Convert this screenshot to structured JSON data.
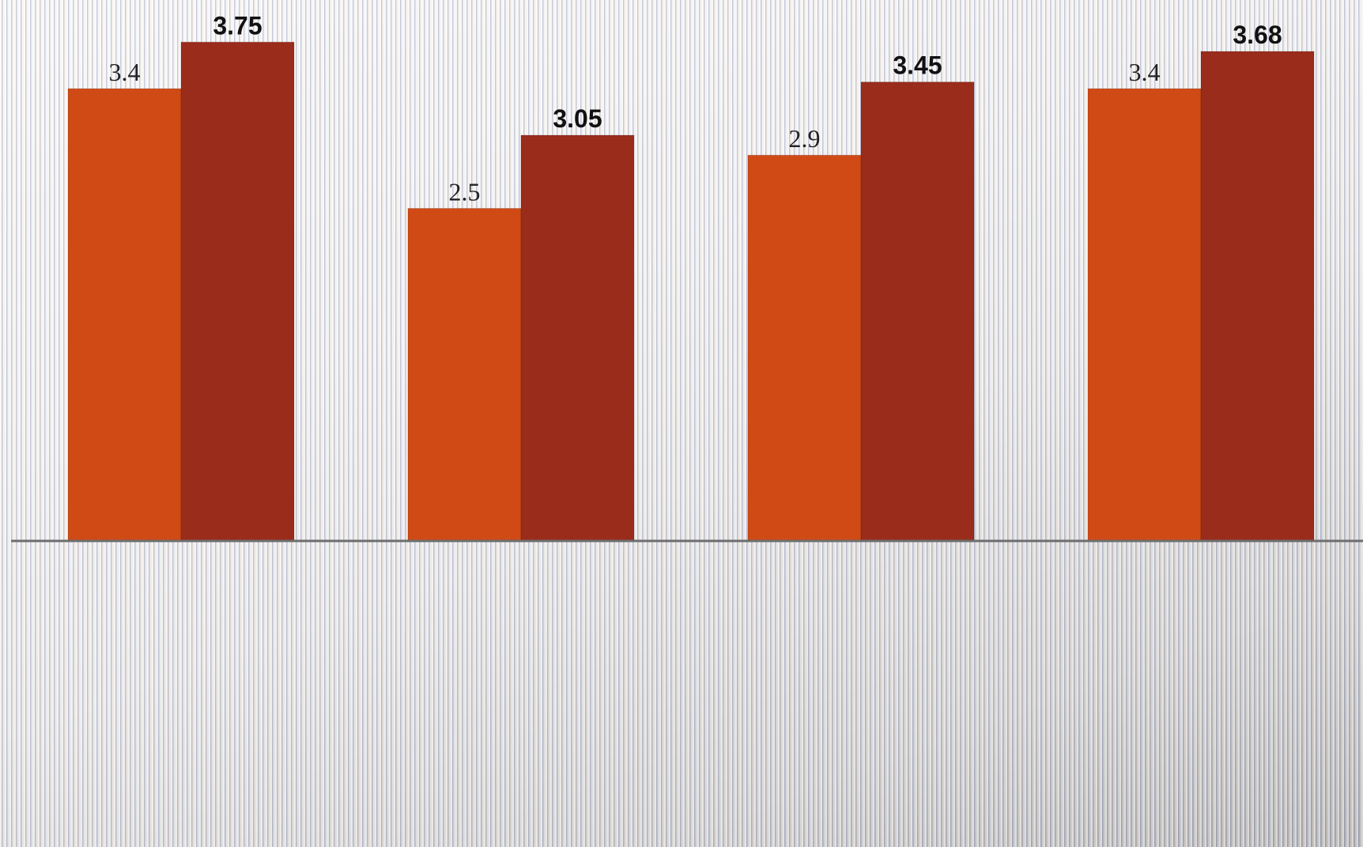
{
  "chart_data": {
    "type": "bar",
    "categories": [
      null,
      null,
      null,
      null
    ],
    "series": [
      {
        "color": "#d04a16",
        "values": [
          3.4,
          2.5,
          2.9,
          3.4
        ]
      },
      {
        "color": "#9a2c1c",
        "values": [
          3.75,
          3.05,
          3.45,
          3.68
        ]
      }
    ]
  }
}
